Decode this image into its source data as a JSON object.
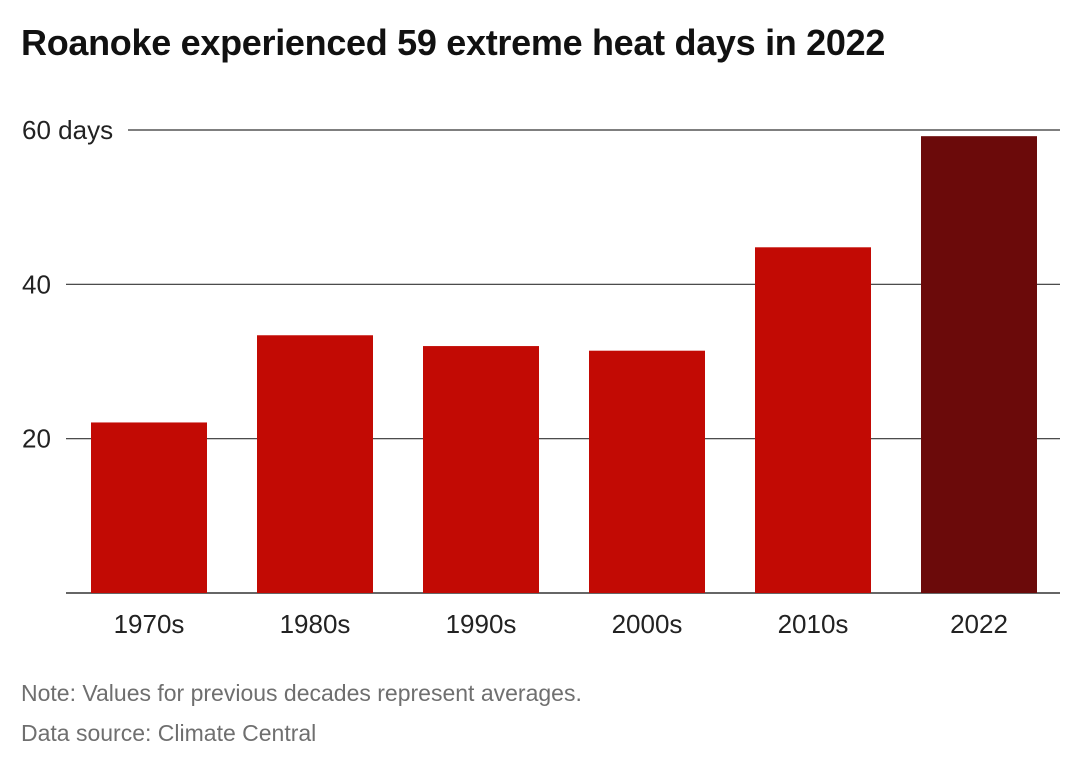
{
  "title": "Roanoke experienced 59 extreme heat days in 2022",
  "note": "Note: Values for previous decades represent averages.",
  "source": "Data source: Climate Central",
  "colors": {
    "bar": "#c20a04",
    "highlight": "#6b0a0a",
    "grid": "#333333",
    "axis_text": "#222222"
  },
  "chart_data": {
    "type": "bar",
    "categories": [
      "1970s",
      "1980s",
      "1990s",
      "2000s",
      "2010s",
      "2022"
    ],
    "values": [
      22.1,
      33.4,
      32.0,
      31.4,
      44.8,
      59.2
    ],
    "highlight_category": "2022",
    "ylim": [
      0,
      60
    ],
    "yticks": [
      {
        "value": 20,
        "label": "20"
      },
      {
        "value": 40,
        "label": "40"
      },
      {
        "value": 60,
        "label": "60 days"
      }
    ],
    "xlabel": "",
    "ylabel": "",
    "grid": true,
    "legend": "none"
  }
}
